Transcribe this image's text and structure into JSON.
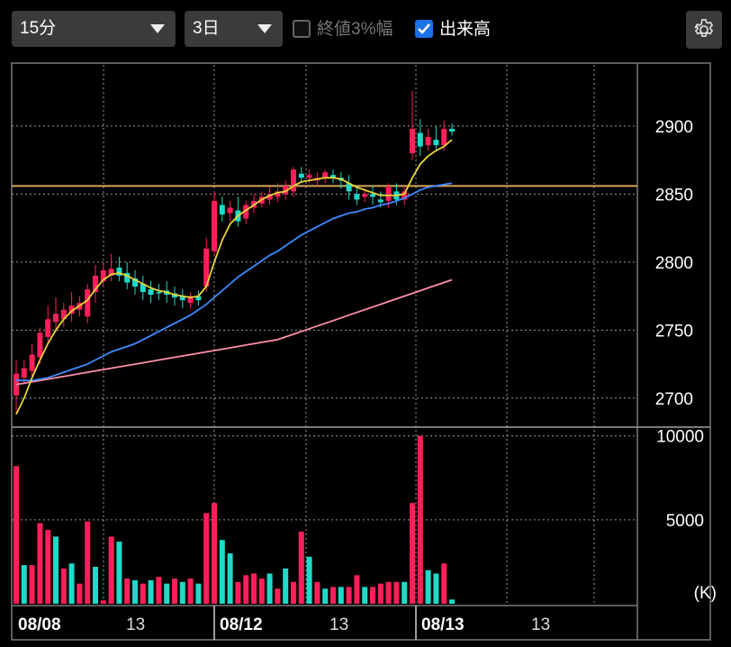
{
  "toolbar": {
    "interval_value": "15分",
    "range_value": "3日",
    "close_pct_label": "終値3%幅",
    "close_pct_checked": false,
    "volume_label": "出来高",
    "volume_checked": true,
    "settings_icon": "gear-icon"
  },
  "colors": {
    "up": "#ff1f5a",
    "down": "#20d9c8",
    "ma_short": "#e7d539",
    "ma_mid": "#3d8bff",
    "ma_long": "#ff8fa8",
    "ref_line": "#d9a55a",
    "grid": "#9a9a9a"
  },
  "chart_data": [
    {
      "type": "candlestick",
      "y_ticks": [
        "2700",
        "2750",
        "2800",
        "2850",
        "2900"
      ],
      "ylim": [
        2680,
        2945
      ],
      "ref_level": 2856,
      "x_labels": [
        "08/08",
        "13",
        "08/12",
        "13",
        "08/13",
        "13"
      ],
      "candles": [
        [
          2702,
          2728,
          2718,
          2688
        ],
        [
          2715,
          2728,
          2722,
          2710
        ],
        [
          2720,
          2740,
          2732,
          2714
        ],
        [
          2730,
          2752,
          2748,
          2725
        ],
        [
          2745,
          2768,
          2758,
          2740
        ],
        [
          2756,
          2774,
          2762,
          2748
        ],
        [
          2758,
          2770,
          2765,
          2752
        ],
        [
          2762,
          2778,
          2768,
          2756
        ],
        [
          2765,
          2775,
          2770,
          2760
        ],
        [
          2760,
          2784,
          2780,
          2755
        ],
        [
          2778,
          2798,
          2790,
          2770
        ],
        [
          2786,
          2800,
          2794,
          2782
        ],
        [
          2790,
          2806,
          2795,
          2786
        ],
        [
          2796,
          2804,
          2790,
          2786
        ],
        [
          2792,
          2800,
          2785,
          2780
        ],
        [
          2788,
          2794,
          2782,
          2776
        ],
        [
          2784,
          2790,
          2778,
          2772
        ],
        [
          2780,
          2786,
          2776,
          2770
        ],
        [
          2778,
          2784,
          2777,
          2772
        ],
        [
          2779,
          2786,
          2776,
          2770
        ],
        [
          2777,
          2782,
          2774,
          2768
        ],
        [
          2775,
          2780,
          2772,
          2766
        ],
        [
          2770,
          2778,
          2775,
          2766
        ],
        [
          2775,
          2779,
          2772,
          2768
        ],
        [
          2782,
          2818,
          2810,
          2778
        ],
        [
          2808,
          2852,
          2845,
          2805
        ],
        [
          2842,
          2848,
          2835,
          2830
        ],
        [
          2836,
          2845,
          2840,
          2830
        ],
        [
          2838,
          2848,
          2830,
          2826
        ],
        [
          2832,
          2845,
          2842,
          2828
        ],
        [
          2840,
          2850,
          2845,
          2836
        ],
        [
          2843,
          2852,
          2848,
          2840
        ],
        [
          2846,
          2855,
          2850,
          2842
        ],
        [
          2848,
          2858,
          2852,
          2844
        ],
        [
          2850,
          2860,
          2856,
          2846
        ],
        [
          2852,
          2870,
          2868,
          2848
        ],
        [
          2865,
          2870,
          2862,
          2858
        ],
        [
          2862,
          2868,
          2864,
          2858
        ],
        [
          2860,
          2866,
          2862,
          2856
        ],
        [
          2862,
          2868,
          2866,
          2858
        ],
        [
          2864,
          2868,
          2862,
          2858
        ],
        [
          2862,
          2866,
          2860,
          2854
        ],
        [
          2858,
          2864,
          2852,
          2846
        ],
        [
          2850,
          2856,
          2846,
          2842
        ],
        [
          2848,
          2854,
          2850,
          2844
        ],
        [
          2850,
          2856,
          2848,
          2842
        ],
        [
          2846,
          2852,
          2844,
          2840
        ],
        [
          2845,
          2858,
          2855,
          2840
        ],
        [
          2852,
          2858,
          2846,
          2842
        ],
        [
          2846,
          2856,
          2852,
          2842
        ],
        [
          2880,
          2926,
          2898,
          2875
        ],
        [
          2895,
          2905,
          2885,
          2878
        ],
        [
          2886,
          2898,
          2892,
          2882
        ],
        [
          2890,
          2900,
          2886,
          2882
        ],
        [
          2886,
          2904,
          2898,
          2882
        ],
        [
          2898,
          2902,
          2896,
          2893
        ]
      ],
      "ma_short": [
        2688,
        2700,
        2715,
        2728,
        2740,
        2750,
        2758,
        2764,
        2768,
        2772,
        2780,
        2787,
        2791,
        2792,
        2790,
        2787,
        2784,
        2781,
        2779,
        2778,
        2776,
        2775,
        2774,
        2775,
        2782,
        2800,
        2816,
        2828,
        2834,
        2838,
        2842,
        2846,
        2849,
        2851,
        2852,
        2856,
        2859,
        2860,
        2861,
        2862,
        2862,
        2861,
        2858,
        2855,
        2853,
        2851,
        2849,
        2849,
        2849,
        2850,
        2862,
        2872,
        2878,
        2882,
        2885,
        2890
      ],
      "ma_mid": [
        2713,
        2713,
        2713,
        2714,
        2715,
        2717,
        2719,
        2721,
        2723,
        2725,
        2728,
        2731,
        2734,
        2736,
        2738,
        2740,
        2743,
        2746,
        2749,
        2752,
        2755,
        2758,
        2761,
        2765,
        2769,
        2774,
        2779,
        2784,
        2789,
        2793,
        2797,
        2801,
        2805,
        2808,
        2812,
        2816,
        2820,
        2823,
        2826,
        2829,
        2832,
        2834,
        2836,
        2837,
        2839,
        2840,
        2842,
        2843,
        2845,
        2847,
        2850,
        2853,
        2855,
        2856,
        2857,
        2858
      ],
      "ma_long": [
        2710,
        2711,
        2712,
        2713,
        2714,
        2715,
        2716,
        2717,
        2718,
        2719,
        2720,
        2721,
        2722,
        2723,
        2724,
        2725,
        2726,
        2727,
        2728,
        2729,
        2730,
        2731,
        2732,
        2733,
        2734,
        2735,
        2736,
        2737,
        2738,
        2739,
        2740,
        2741,
        2742,
        2743,
        2745,
        2747,
        2749,
        2751,
        2753,
        2755,
        2757,
        2759,
        2761,
        2763,
        2765,
        2767,
        2769,
        2771,
        2773,
        2775,
        2777,
        2779,
        2781,
        2783,
        2785,
        2787
      ]
    },
    {
      "type": "bar",
      "y_ticks": [
        "10000",
        "5000"
      ],
      "unit_label": "(K)",
      "ylim": [
        0,
        10200
      ],
      "volumes": [
        8200,
        2300,
        2300,
        4800,
        4400,
        4000,
        2100,
        2400,
        1200,
        4900,
        2200,
        200,
        4000,
        3700,
        1500,
        1400,
        1200,
        1400,
        1600,
        1200,
        1500,
        1300,
        1500,
        1200,
        5400,
        6000,
        3800,
        3000,
        1300,
        1700,
        1800,
        1500,
        1800,
        900,
        2100,
        1300,
        4300,
        2800,
        1300,
        900,
        1000,
        1000,
        1000,
        1700,
        1000,
        1000,
        1200,
        1300,
        1300,
        1300,
        6000,
        10000,
        2000,
        1800,
        2400,
        250
      ],
      "up": [
        1,
        0,
        1,
        1,
        1,
        0,
        1,
        0,
        1,
        1,
        0,
        1,
        1,
        0,
        1,
        0,
        1,
        0,
        1,
        0,
        1,
        0,
        1,
        0,
        1,
        1,
        0,
        0,
        1,
        1,
        1,
        1,
        0,
        1,
        0,
        1,
        1,
        0,
        1,
        0,
        1,
        0,
        1,
        1,
        0,
        1,
        1,
        1,
        1,
        0,
        1,
        1,
        0,
        0,
        1,
        0
      ]
    }
  ]
}
